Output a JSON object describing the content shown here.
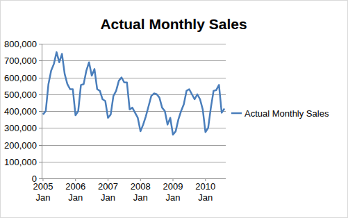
{
  "chart_data": {
    "type": "line",
    "title": "Actual Monthly Sales",
    "categories": [
      "2005 Jan",
      null,
      null,
      null,
      null,
      null,
      null,
      null,
      null,
      null,
      null,
      null,
      "2006 Jan",
      null,
      null,
      null,
      null,
      null,
      null,
      null,
      null,
      null,
      null,
      null,
      "2007 Jan",
      null,
      null,
      null,
      null,
      null,
      null,
      null,
      null,
      null,
      null,
      null,
      "2008 Jan",
      null,
      null,
      null,
      null,
      null,
      null,
      null,
      null,
      null,
      null,
      null,
      "2009 Jan",
      null,
      null,
      null,
      null,
      null,
      null,
      null,
      null,
      null,
      null,
      null,
      "2010 Jan",
      null,
      null,
      null,
      null,
      null,
      null,
      null
    ],
    "series": [
      {
        "name": "Actual Monthly Sales",
        "color": "#4a7ebb",
        "values": [
          380000,
          400000,
          560000,
          640000,
          680000,
          750000,
          690000,
          740000,
          620000,
          560000,
          530000,
          530000,
          375000,
          400000,
          555000,
          560000,
          640000,
          690000,
          610000,
          650000,
          530000,
          520000,
          470000,
          460000,
          360000,
          380000,
          490000,
          520000,
          580000,
          600000,
          570000,
          570000,
          410000,
          420000,
          390000,
          360000,
          280000,
          320000,
          370000,
          430000,
          490000,
          505000,
          500000,
          480000,
          420000,
          400000,
          320000,
          360000,
          260000,
          280000,
          350000,
          400000,
          440000,
          520000,
          530000,
          500000,
          470000,
          500000,
          470000,
          410000,
          275000,
          300000,
          420000,
          520000,
          525000,
          555000,
          390000,
          415000
        ]
      }
    ],
    "ylim": [
      0,
      800000
    ],
    "yticks": [
      0,
      {
        "value": 100000,
        "label": "100,000"
      },
      {
        "value": 200000,
        "label": "200,000"
      },
      {
        "value": 300000,
        "label": "300,000"
      },
      {
        "value": 400000,
        "label": "400,000"
      },
      {
        "value": 500000,
        "label": "500,000"
      },
      {
        "value": 600000,
        "label": "600,000"
      },
      {
        "value": 700000,
        "label": "700,000"
      },
      {
        "value": 800000,
        "label": "800,000"
      }
    ],
    "grid": true,
    "legend": "right"
  }
}
